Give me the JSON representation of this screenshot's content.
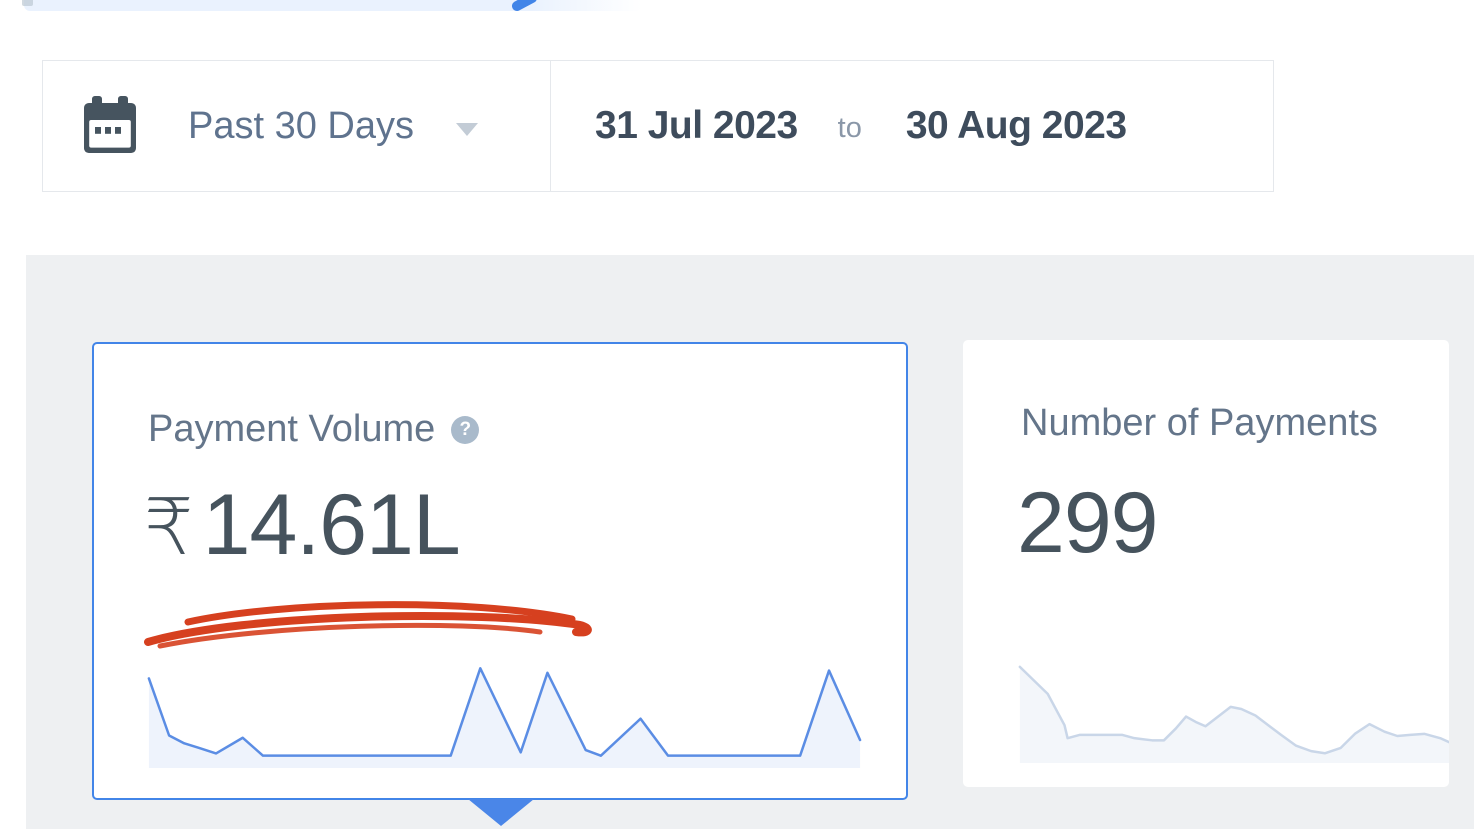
{
  "date_filter": {
    "preset": "Past 30 Days",
    "from": "31 Jul 2023",
    "separator": "to",
    "to": "30 Aug 2023"
  },
  "cards": {
    "payment_volume": {
      "label": "Payment Volume",
      "help": "?",
      "currency": "₹",
      "amount": "14.61L",
      "selected": true
    },
    "payments_count": {
      "label": "Number of Payments",
      "amount": "299",
      "selected": false
    }
  },
  "chart_data": [
    {
      "type": "line",
      "name": "Payment Volume sparkline (Past 30 Days, 31 Jul 2023 to 30 Aug 2023)",
      "line_color": "#5b8de4",
      "fill_color": "rgba(91,141,228,0.10)",
      "stroke_width": 2.5,
      "points": [
        [
          0.4,
          20
        ],
        [
          3.2,
          71
        ],
        [
          5.3,
          78
        ],
        [
          7.3,
          82
        ],
        [
          9.7,
          87
        ],
        [
          13.4,
          73
        ],
        [
          16.2,
          89
        ],
        [
          42.2,
          89
        ],
        [
          46.3,
          11
        ],
        [
          51.9,
          86
        ],
        [
          55.6,
          15
        ],
        [
          60.9,
          84
        ],
        [
          63.0,
          89
        ],
        [
          68.5,
          56
        ],
        [
          72.3,
          89
        ],
        [
          90.6,
          89
        ],
        [
          94.6,
          13
        ],
        [
          98.9,
          75
        ]
      ]
    },
    {
      "type": "line",
      "name": "Number of Payments sparkline (Past 30 Days, 31 Jul 2023 to 30 Aug 2023)",
      "line_color": "#c9d6e8",
      "fill_color": "rgba(201,214,232,0.22)",
      "stroke_width": 2.5,
      "points": [
        [
          1.1,
          11
        ],
        [
          7.4,
          36
        ],
        [
          11.2,
          65
        ],
        [
          11.9,
          77
        ],
        [
          14.6,
          74
        ],
        [
          16.9,
          74
        ],
        [
          24.3,
          74
        ],
        [
          27.0,
          77
        ],
        [
          31.0,
          79
        ],
        [
          33.7,
          79
        ],
        [
          36.4,
          68
        ],
        [
          38.7,
          57
        ],
        [
          40.9,
          62
        ],
        [
          43.1,
          66
        ],
        [
          48.8,
          48
        ],
        [
          51.2,
          50
        ],
        [
          54.4,
          56
        ],
        [
          57.3,
          65
        ],
        [
          60.2,
          74
        ],
        [
          63.6,
          84
        ],
        [
          67.0,
          89
        ],
        [
          70.1,
          91
        ],
        [
          73.7,
          86
        ],
        [
          76.9,
          73
        ],
        [
          80.2,
          64
        ],
        [
          83.6,
          71
        ],
        [
          86.5,
          75
        ],
        [
          89.4,
          74
        ],
        [
          92.6,
          73
        ],
        [
          96.2,
          77
        ],
        [
          98.9,
          82
        ]
      ]
    }
  ],
  "colors": {
    "accent_blue": "#4285e8",
    "triangle_blue": "#4a86e8",
    "annotation_red": "#d6401f",
    "spark_blue": "#5b8de4",
    "spark_gray": "#c9d6e8",
    "panel_bg": "#eef0f2",
    "value_text": "#46535d",
    "label_text": "#64758a",
    "date_text": "#3e4c5c",
    "muted_text": "#8a97a8"
  }
}
